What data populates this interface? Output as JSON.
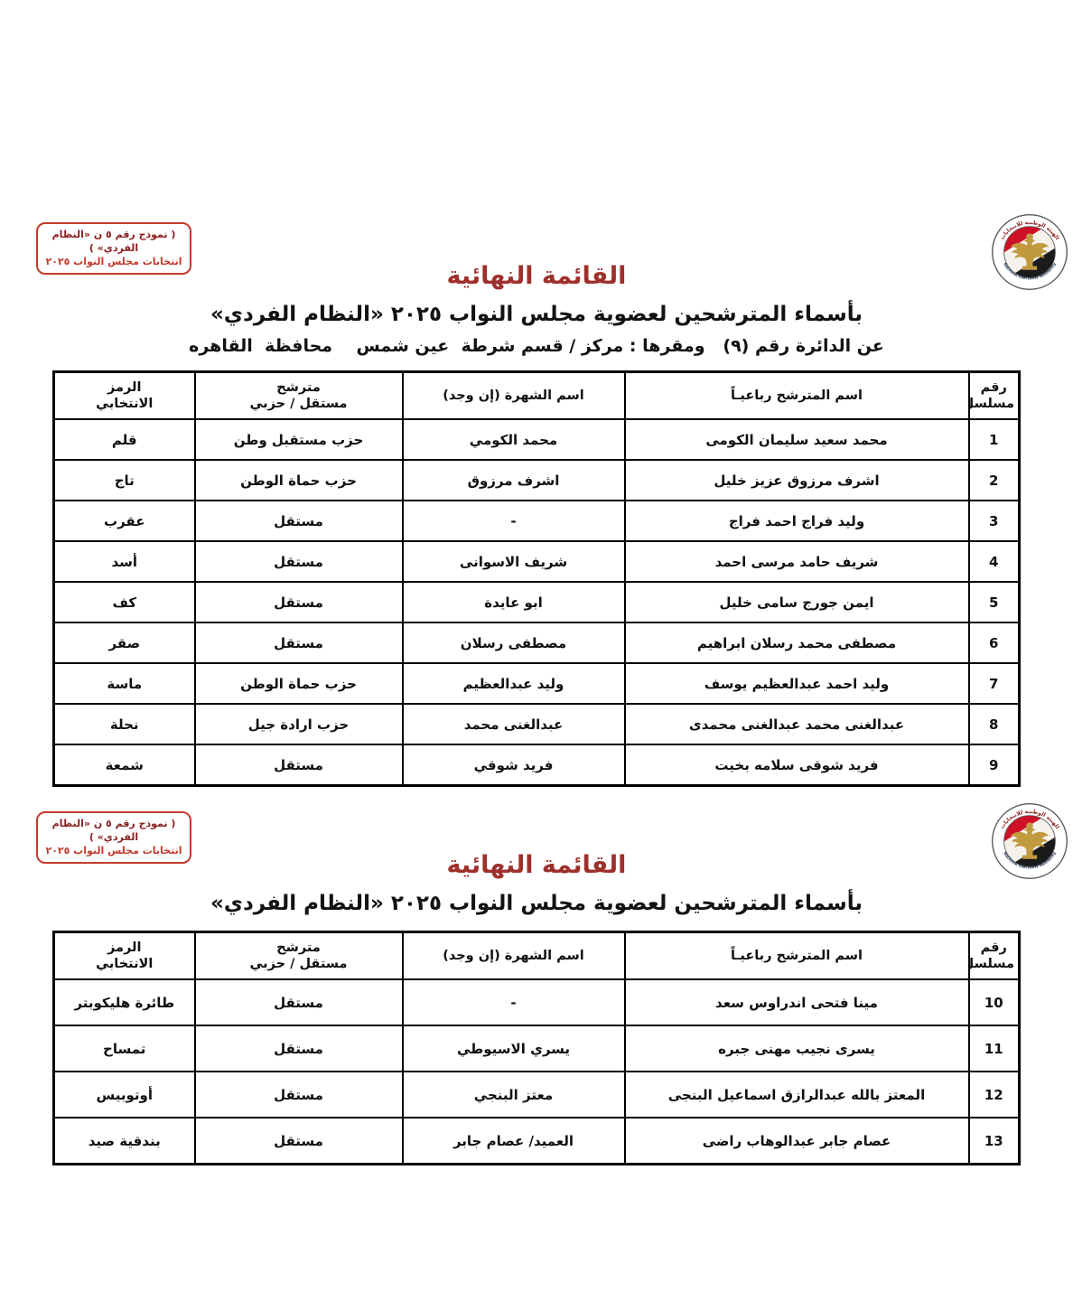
{
  "document": {
    "form_box": {
      "line1": "( نموذج رقم ٥ ن «النظام الفردي» )",
      "line2": "انتخابات مجلس النواب ٢٠٢٥"
    },
    "logo": {
      "arabic_text": "الهيئة الوطنية للانتخابات",
      "english_text": "National Elections Authority"
    },
    "colors": {
      "title_red": "#9E302C",
      "box_border_red": "#C23B2E",
      "box_text_dark_red": "#8A1F1F",
      "table_border": "#000000",
      "logo_gold": "#C19A3E",
      "flag_red": "#CE1126",
      "flag_black": "#1B1B1B"
    }
  },
  "sections": [
    {
      "title": "القائمة النهائية",
      "subtitle": "بأسماء المترشحين لعضوية مجلس النواب ٢٠٢٥ «النظام الفردي»",
      "district_line": "عن الدائرة رقم (٩)   ومقرها : مركز / قسم شرطة  عين شمس    محافظة  القاهره",
      "table": {
        "headers": {
          "serial": "رقم\nمسلسل",
          "name": "اسم المترشح رباعيـاً",
          "fame": "اسم الشهرة (إن وجد)",
          "status": "مترشح\nمستقل / حزبي",
          "symbol": "الرمز\nالانتخابي"
        },
        "rows": [
          {
            "serial": "1",
            "name": "محمد سعيد سليمان الكومى",
            "fame": "محمد الكومي",
            "status": "حزب مستقبل وطن",
            "symbol": "قلم"
          },
          {
            "serial": "2",
            "name": "اشرف مرزوق عزيز خليل",
            "fame": "اشرف مرزوق",
            "status": "حزب حماة الوطن",
            "symbol": "تاج"
          },
          {
            "serial": "3",
            "name": "وليد فراج احمد فراج",
            "fame": "-",
            "status": "مستقل",
            "symbol": "عقرب"
          },
          {
            "serial": "4",
            "name": "شريف حامد مرسى احمد",
            "fame": "شريف الاسوانى",
            "status": "مستقل",
            "symbol": "أسد"
          },
          {
            "serial": "5",
            "name": "ايمن جورج سامى خليل",
            "fame": "ابو عايدة",
            "status": "مستقل",
            "symbol": "كف"
          },
          {
            "serial": "6",
            "name": "مصطفى محمد رسلان ابراهيم",
            "fame": "مصطفى رسلان",
            "status": "مستقل",
            "symbol": "صقر"
          },
          {
            "serial": "7",
            "name": "وليد احمد عبدالعظيم يوسف",
            "fame": "وليد عبدالعظيم",
            "status": "حزب حماة الوطن",
            "symbol": "ماسة"
          },
          {
            "serial": "8",
            "name": "عبدالغنى محمد عبدالغنى محمدى",
            "fame": "عبدالغنى محمد",
            "status": "حزب ارادة جيل",
            "symbol": "نحلة"
          },
          {
            "serial": "9",
            "name": "فريد شوقى سلامه بخيت",
            "fame": "فريد شوقي",
            "status": "مستقل",
            "symbol": "شمعة"
          }
        ]
      }
    },
    {
      "title": "القائمة النهائية",
      "subtitle": "بأسماء المترشحين لعضوية مجلس النواب ٢٠٢٥ «النظام الفردي»",
      "table": {
        "headers": {
          "serial": "رقم\nمسلسل",
          "name": "اسم المترشح رباعيـاً",
          "fame": "اسم الشهرة (إن وجد)",
          "status": "مترشح\nمستقل / حزبي",
          "symbol": "الرمز\nالانتخابي"
        },
        "rows": [
          {
            "serial": "10",
            "name": "مينا فتحى اندراوس سعد",
            "fame": "-",
            "status": "مستقل",
            "symbol": "طائرة هليكوبتر"
          },
          {
            "serial": "11",
            "name": "يسرى نجيب مهنى جبره",
            "fame": "يسري الاسيوطي",
            "status": "مستقل",
            "symbol": "تمساح"
          },
          {
            "serial": "12",
            "name": "المعتز بالله عبدالرازق اسماعيل البنجى",
            "fame": "معتز البنجي",
            "status": "مستقل",
            "symbol": "أوتوبيس"
          },
          {
            "serial": "13",
            "name": "عصام جابر عبدالوهاب راضى",
            "fame": "العميد/ عصام جابر",
            "status": "مستقل",
            "symbol": "بندقية صيد"
          }
        ]
      }
    }
  ]
}
